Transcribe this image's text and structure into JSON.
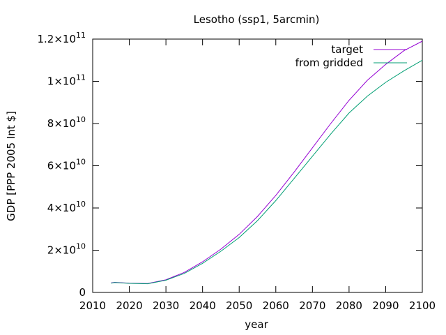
{
  "chart_data": {
    "type": "line",
    "title": "Lesotho (ssp1, 5arcmin)",
    "xlabel": "year",
    "ylabel": "GDP [PPP 2005 Int $]",
    "xlim": [
      2010,
      2100
    ],
    "ylim": [
      0,
      120000000000
    ],
    "x_ticks": [
      2010,
      2020,
      2030,
      2040,
      2050,
      2060,
      2070,
      2080,
      2090,
      2100
    ],
    "y_ticks": [
      {
        "value": 0,
        "mantissa": "0",
        "exponent": ""
      },
      {
        "value": 20000000000,
        "mantissa": "2×10",
        "exponent": "10"
      },
      {
        "value": 40000000000,
        "mantissa": "4×10",
        "exponent": "10"
      },
      {
        "value": 60000000000,
        "mantissa": "6×10",
        "exponent": "10"
      },
      {
        "value": 80000000000,
        "mantissa": "8×10",
        "exponent": "10"
      },
      {
        "value": 100000000000,
        "mantissa": "1×10",
        "exponent": "11"
      },
      {
        "value": 120000000000,
        "mantissa": "1.2×10",
        "exponent": "11"
      }
    ],
    "grid": false,
    "legend_position": "top-right",
    "x": [
      2015,
      2016,
      2020,
      2025,
      2030,
      2035,
      2040,
      2045,
      2050,
      2055,
      2060,
      2065,
      2070,
      2075,
      2080,
      2085,
      2090,
      2095,
      2100
    ],
    "series": [
      {
        "name": "target",
        "color": "#9400d3",
        "values": [
          4500000000,
          4800000000,
          4400000000,
          4200000000,
          6000000000,
          9500000000,
          14500000000,
          20500000000,
          27500000000,
          36000000000,
          46000000000,
          57000000000,
          68500000000,
          80000000000,
          91000000000,
          100500000000,
          108000000000,
          114500000000,
          119000000000
        ]
      },
      {
        "name": "from gridded",
        "color": "#009e73",
        "values": [
          4400000000,
          4700000000,
          4300000000,
          4100000000,
          5800000000,
          9000000000,
          13800000000,
          19500000000,
          26000000000,
          34000000000,
          43500000000,
          54000000000,
          64500000000,
          75000000000,
          85000000000,
          93000000000,
          99500000000,
          105000000000,
          110000000000
        ]
      }
    ]
  }
}
